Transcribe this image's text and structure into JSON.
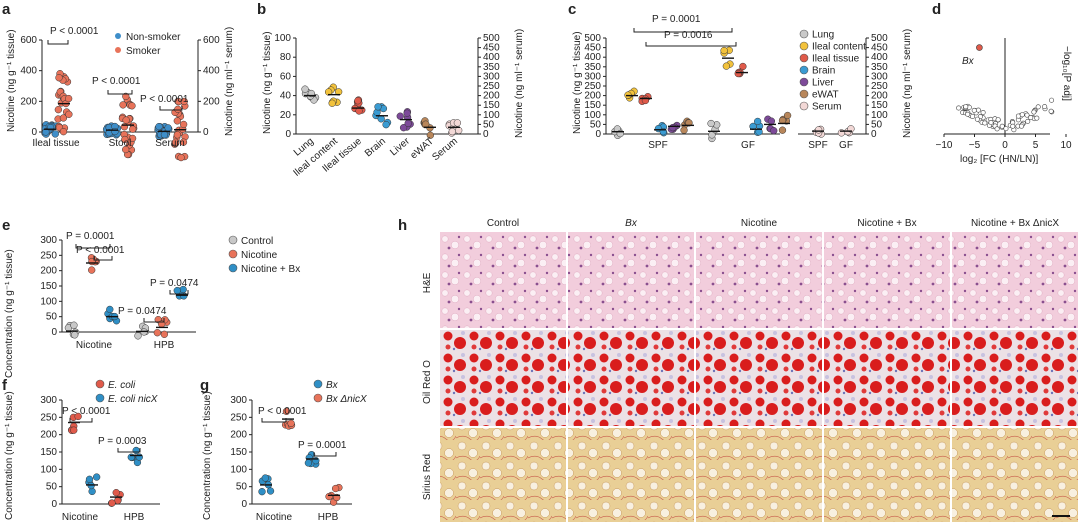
{
  "colors": {
    "nonsmoker": "#3e8ec9",
    "smoker": "#e8735a",
    "lung": "#c9c9c9",
    "ileal_content": "#f2c23c",
    "ileal_tissue": "#e05a4a",
    "brain": "#3a9bd2",
    "liver": "#7d4a99",
    "ewat": "#b8865a",
    "serum": "#f2d8d6",
    "control": "#c8c8c8",
    "nicotine": "#e8735a",
    "nicotine_bx": "#2f8fc6",
    "ecoli": "#e05a4a",
    "ecoli_nicx": "#2f8fc6",
    "bx": "#2f8fc6",
    "bx_dnicx": "#e8735a",
    "he_bg": "#f2cddc",
    "oil_bg": "#efe6ea",
    "oil_drop": "#d91d1d",
    "sirius_bg": "#e9cf96"
  },
  "panels": {
    "a": "a",
    "b": "b",
    "c": "c",
    "d": "d",
    "e": "e",
    "f": "f",
    "g": "g",
    "h": "h"
  },
  "chart_data": [
    {
      "id": "a",
      "type": "scatter",
      "ylabel_left": "Nicotine (ng g⁻¹ tissue)",
      "ylabel_right": "Nicotine (ng ml⁻¹ serum)",
      "yticks_left": [
        "0",
        "200",
        "400",
        "600"
      ],
      "yticks_right": [
        "0",
        "200",
        "400",
        "600"
      ],
      "ylim": [
        0,
        600
      ],
      "categories": [
        "Ileal tissue",
        "Stool",
        "Serum"
      ],
      "legend": [
        "Non-smoker",
        "Smoker"
      ],
      "series": [
        {
          "name": "Non-smoker",
          "medians": [
            18,
            12,
            4
          ]
        },
        {
          "name": "Smoker",
          "medians": [
            185,
            45,
            15
          ]
        }
      ],
      "annotations": [
        "P < 0.0001",
        "P < 0.0001",
        "P < 0.0001"
      ]
    },
    {
      "id": "b",
      "type": "scatter",
      "ylabel_left": "Nicotine (ng g⁻¹ tissue)",
      "ylabel_right": "Nicotine (ng ml⁻¹ serum)",
      "yticks_left": [
        "0",
        "20",
        "40",
        "60",
        "80",
        "100"
      ],
      "yticks_right": [
        "0",
        "50",
        "100",
        "150",
        "200",
        "250",
        "300",
        "350",
        "400",
        "450",
        "500"
      ],
      "ylim": [
        0,
        100
      ],
      "categories": [
        "Lung",
        "Ileal content",
        "Ileal tissue",
        "Brain",
        "Liver",
        "eWAT",
        "Serum"
      ],
      "values": [
        40,
        41,
        27,
        19,
        15,
        7,
        7
      ]
    },
    {
      "id": "c",
      "type": "scatter",
      "ylabel_left": "Nicotine (ng g⁻¹ tissue)",
      "ylabel_right": "Nicotine (ng ml⁻¹ serum)",
      "yticks_left": [
        "0",
        "50",
        "100",
        "150",
        "200",
        "250",
        "300",
        "350",
        "400",
        "450",
        "500"
      ],
      "yticks_right": [
        "0",
        "50",
        "100",
        "150",
        "200",
        "250",
        "300",
        "350",
        "400",
        "450",
        "500"
      ],
      "ylim": [
        0,
        500
      ],
      "groups": [
        "SPF",
        "GF",
        "SPF",
        "GF"
      ],
      "legend": [
        "Lung",
        "Ileal content",
        "Ileal tissue",
        "Brain",
        "Liver",
        "eWAT",
        "Serum"
      ],
      "spf": [
        12,
        200,
        185,
        22,
        40,
        45
      ],
      "gf": [
        14,
        395,
        320,
        25,
        50,
        55
      ],
      "serum": {
        "SPF": 15,
        "GF": 15
      },
      "annotations": [
        "P = 0.0001",
        "P = 0.0016"
      ]
    },
    {
      "id": "d",
      "type": "scatter",
      "xlabel": "log₂ [FC (HN/LN)]",
      "ylabel": "−log₁₀[P adj]",
      "xticks": [
        "−10",
        "−5",
        "0",
        "5",
        "10"
      ],
      "xlim": [
        -10,
        10
      ],
      "highlight": {
        "label": "Bx",
        "x": -4.2,
        "y": 3.6
      }
    },
    {
      "id": "e",
      "type": "scatter",
      "ylabel": "Concentration (ng g⁻¹ tissue)",
      "yticks": [
        "0",
        "50",
        "100",
        "150",
        "200",
        "250",
        "300"
      ],
      "ylim": [
        0,
        300
      ],
      "categories": [
        "Nicotine",
        "HPB"
      ],
      "legend": [
        "Control",
        "Nicotine",
        "Nicotine + Bx"
      ],
      "series": [
        {
          "name": "Control",
          "values": [
            3,
            2
          ]
        },
        {
          "name": "Nicotine",
          "values": [
            225,
            15
          ]
        },
        {
          "name": "Nicotine + Bx",
          "values": [
            50,
            120
          ]
        }
      ],
      "annotations": [
        "P = 0.0001",
        "P < 0.0001",
        "P = 0.0474",
        "P = 0.0474"
      ]
    },
    {
      "id": "f",
      "type": "scatter",
      "ylabel": "Concentration (ng g⁻¹ tissue)",
      "yticks": [
        "0",
        "50",
        "100",
        "150",
        "200",
        "250",
        "300"
      ],
      "ylim": [
        0,
        300
      ],
      "categories": [
        "Nicotine",
        "HPB"
      ],
      "legend": [
        "E. coli",
        "E. coli nicX"
      ],
      "series": [
        {
          "name": "E. coli",
          "values": [
            235,
            20
          ]
        },
        {
          "name": "E. coli nicX",
          "values": [
            55,
            140
          ]
        }
      ],
      "annotations": [
        "P < 0.0001",
        "P = 0.0003"
      ]
    },
    {
      "id": "g",
      "type": "scatter",
      "ylabel": "Concentration (ng g⁻¹ tissue)",
      "yticks": [
        "0",
        "50",
        "100",
        "150",
        "200",
        "250",
        "300"
      ],
      "ylim": [
        0,
        300
      ],
      "categories": [
        "Nicotine",
        "HPB"
      ],
      "legend": [
        "Bx",
        "Bx ΔnicX"
      ],
      "series": [
        {
          "name": "Bx",
          "values": [
            55,
            130
          ]
        },
        {
          "name": "Bx ΔnicX",
          "values": [
            245,
            25
          ]
        }
      ],
      "annotations": [
        "P < 0.0001",
        "P = 0.0001"
      ]
    }
  ],
  "histology": {
    "columns": [
      "Control",
      "Bx",
      "Nicotine",
      "Nicotine + Bx",
      "Nicotine + Bx ΔnicX"
    ],
    "rows": [
      "H&E",
      "Oil Red O",
      "Sirius Red"
    ]
  }
}
